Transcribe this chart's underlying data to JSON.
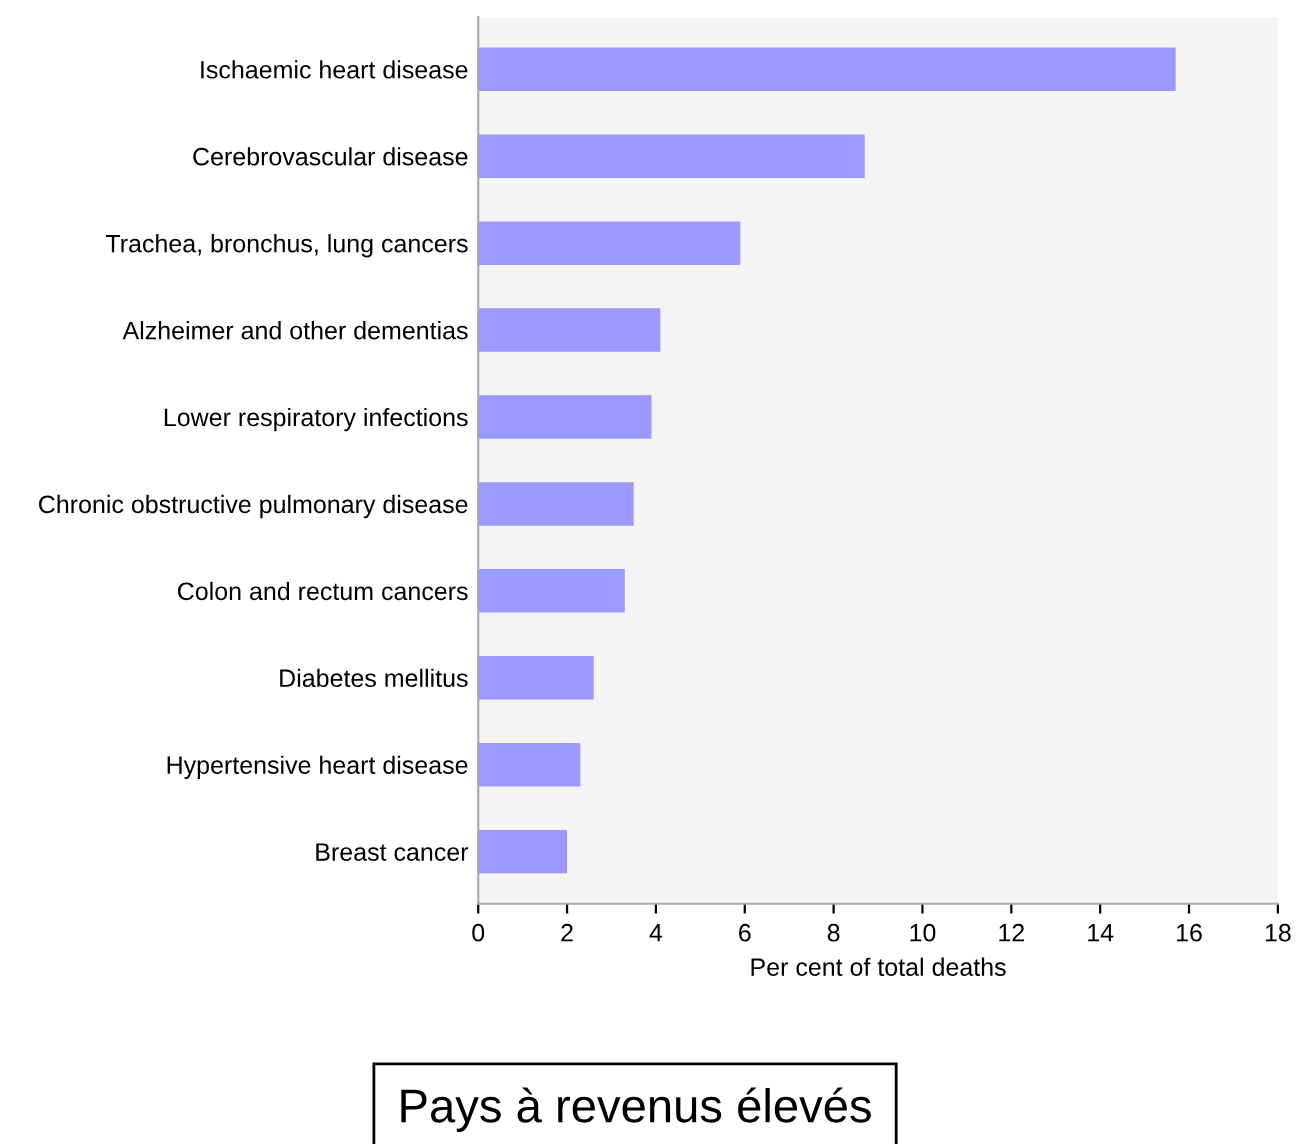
{
  "chart_data": {
    "type": "bar",
    "orientation": "horizontal",
    "title": "Pays à revenus élevés",
    "xlabel": "Per cent of total deaths",
    "categories": [
      "Ischaemic heart disease",
      "Cerebrovascular disease",
      "Trachea, bronchus, lung cancers",
      "Alzheimer and other dementias",
      "Lower respiratory infections",
      "Chronic obstructive pulmonary disease",
      "Colon and rectum cancers",
      "Diabetes mellitus",
      "Hypertensive heart disease",
      "Breast cancer"
    ],
    "values": [
      15.7,
      8.7,
      5.9,
      4.1,
      3.9,
      3.5,
      3.3,
      2.6,
      2.3,
      2.0
    ],
    "color": "#9999ff",
    "xlim": [
      0,
      18
    ],
    "xticks": [
      0,
      2,
      4,
      6,
      8,
      10,
      12,
      14,
      16,
      18
    ],
    "grid": false,
    "legend": false
  }
}
